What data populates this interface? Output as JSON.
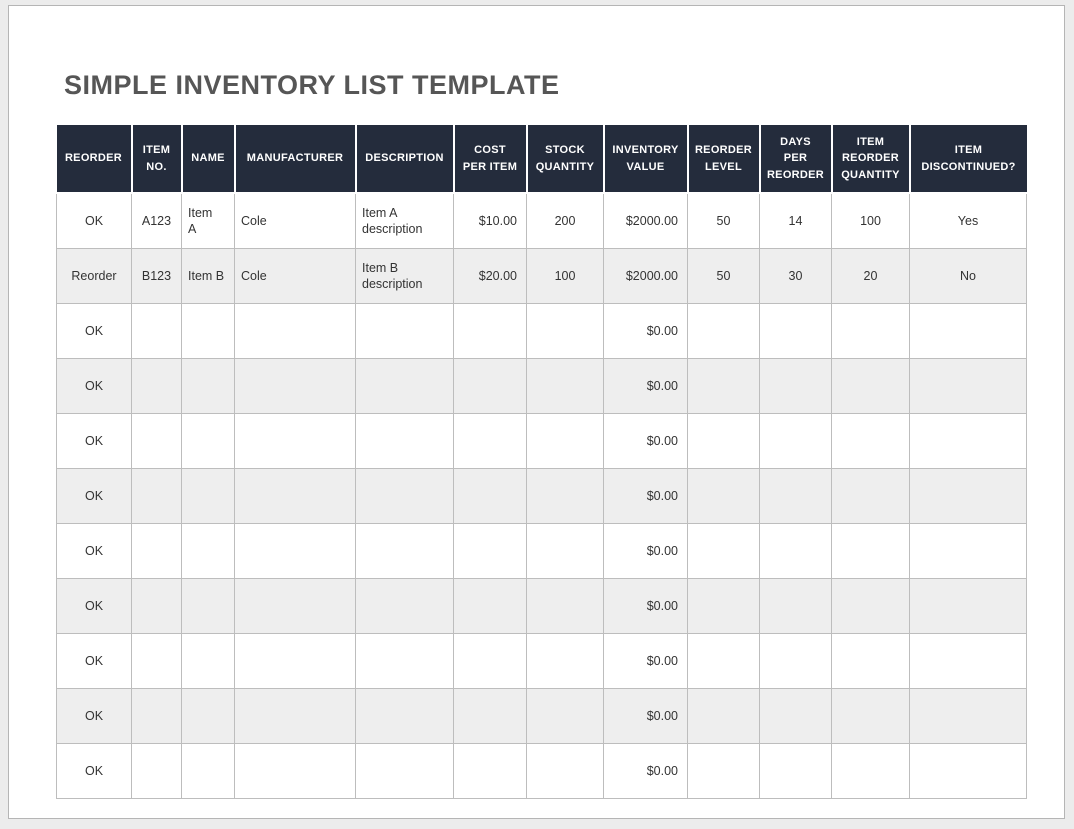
{
  "page": {
    "title": "SIMPLE INVENTORY LIST TEMPLATE"
  },
  "colors": {
    "header_bg": "#242c3c",
    "header_text": "#ffffff",
    "alt_row_bg": "#eeeeee",
    "grid_border": "#bdbdbd",
    "title_text": "#565656",
    "body_text": "#333333",
    "page_bg": "#ffffff",
    "canvas_bg": "#ececec"
  },
  "table": {
    "columns": [
      {
        "id": "reorder",
        "label": "REORDER"
      },
      {
        "id": "item-no",
        "label": "ITEM\nNO."
      },
      {
        "id": "name",
        "label": "NAME"
      },
      {
        "id": "manufacturer",
        "label": "MANUFACTURER"
      },
      {
        "id": "description",
        "label": "DESCRIPTION"
      },
      {
        "id": "cost-per-item",
        "label": "COST\nPER ITEM"
      },
      {
        "id": "stock-quantity",
        "label": "STOCK\nQUANTITY"
      },
      {
        "id": "inventory-value",
        "label": "INVENTORY\nVALUE"
      },
      {
        "id": "reorder-level",
        "label": "REORDER\nLEVEL"
      },
      {
        "id": "days-per-reorder",
        "label": "DAYS\nPER\nREORDER"
      },
      {
        "id": "item-reorder-quantity",
        "label": "ITEM\nREORDER\nQUANTITY"
      },
      {
        "id": "item-discontinued",
        "label": "ITEM\nDISCONTINUED?"
      }
    ],
    "rows": [
      [
        "OK",
        "A123",
        "Item\nA",
        "Cole",
        "Item A description",
        "$10.00",
        "200",
        "$2000.00",
        "50",
        "14",
        "100",
        "Yes"
      ],
      [
        "Reorder",
        "B123",
        "Item B",
        "Cole",
        "Item B description",
        "$20.00",
        "100",
        "$2000.00",
        "50",
        "30",
        "20",
        "No"
      ],
      [
        "OK",
        "",
        "",
        "",
        "",
        "",
        "",
        "$0.00",
        "",
        "",
        "",
        ""
      ],
      [
        "OK",
        "",
        "",
        "",
        "",
        "",
        "",
        "$0.00",
        "",
        "",
        "",
        ""
      ],
      [
        "OK",
        "",
        "",
        "",
        "",
        "",
        "",
        "$0.00",
        "",
        "",
        "",
        ""
      ],
      [
        "OK",
        "",
        "",
        "",
        "",
        "",
        "",
        "$0.00",
        "",
        "",
        "",
        ""
      ],
      [
        "OK",
        "",
        "",
        "",
        "",
        "",
        "",
        "$0.00",
        "",
        "",
        "",
        ""
      ],
      [
        "OK",
        "",
        "",
        "",
        "",
        "",
        "",
        "$0.00",
        "",
        "",
        "",
        ""
      ],
      [
        "OK",
        "",
        "",
        "",
        "",
        "",
        "",
        "$0.00",
        "",
        "",
        "",
        ""
      ],
      [
        "OK",
        "",
        "",
        "",
        "",
        "",
        "",
        "$0.00",
        "",
        "",
        "",
        ""
      ],
      [
        "OK",
        "",
        "",
        "",
        "",
        "",
        "",
        "$0.00",
        "",
        "",
        "",
        ""
      ]
    ]
  }
}
